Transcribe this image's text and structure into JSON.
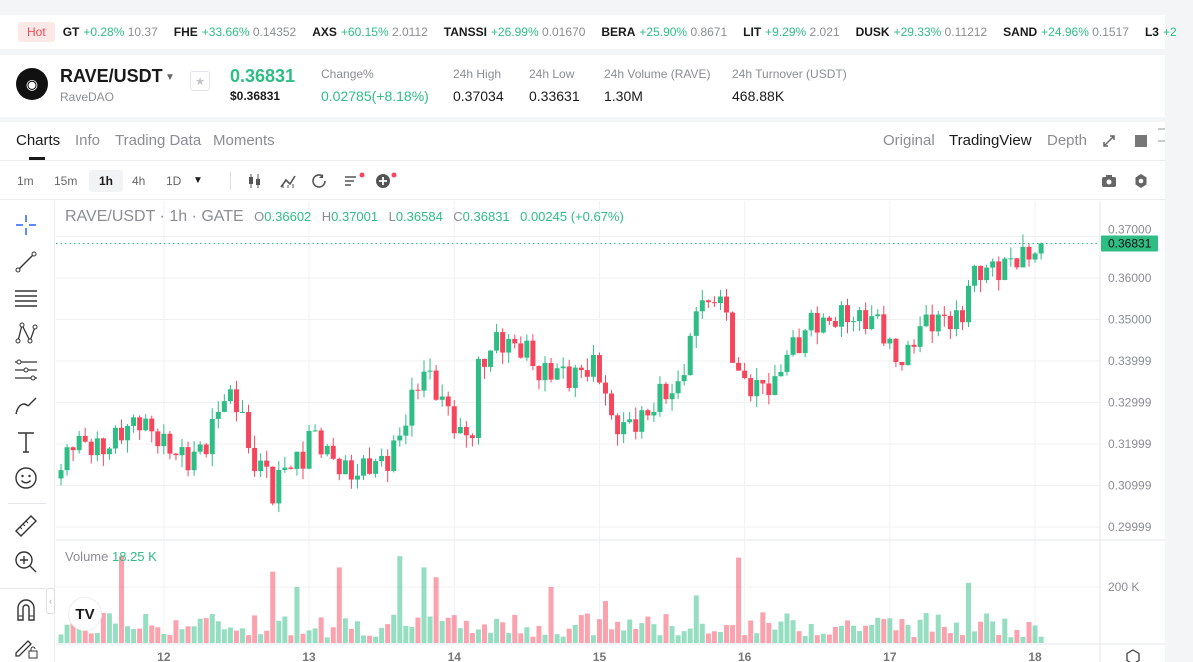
{
  "ticker": {
    "hot_label": "Hot",
    "items": [
      {
        "symbol": "GT",
        "change": "+0.28%",
        "price": "10.37"
      },
      {
        "symbol": "FHE",
        "change": "+33.66%",
        "price": "0.14352"
      },
      {
        "symbol": "AXS",
        "change": "+60.15%",
        "price": "2.0112"
      },
      {
        "symbol": "TANSSI",
        "change": "+26.99%",
        "price": "0.01670"
      },
      {
        "symbol": "BERA",
        "change": "+25.90%",
        "price": "0.8671"
      },
      {
        "symbol": "LIT",
        "change": "+9.29%",
        "price": "2.021"
      },
      {
        "symbol": "DUSK",
        "change": "+29.33%",
        "price": "0.11212"
      },
      {
        "symbol": "SAND",
        "change": "+24.96%",
        "price": "0.1517"
      },
      {
        "symbol": "L3",
        "change": "+2",
        "price": ""
      }
    ]
  },
  "header": {
    "pair": "RAVE/USDT",
    "name": "RaveDAO",
    "last_price": "0.36831",
    "last_price_usd": "$0.36831",
    "stats": [
      {
        "label": "Change%",
        "value": "0.02785(+8.18%)",
        "green": true
      },
      {
        "label": "24h High",
        "value": "0.37034"
      },
      {
        "label": "24h Low",
        "value": "0.33631"
      },
      {
        "label": "24h Volume (RAVE)",
        "value": "1.30M"
      },
      {
        "label": "24h Turnover (USDT)",
        "value": "468.88K"
      }
    ]
  },
  "tabs": [
    "Charts",
    "Info",
    "Trading Data",
    "Moments"
  ],
  "views": [
    "Original",
    "TradingView",
    "Depth"
  ],
  "intervals": [
    "1m",
    "15m",
    "1h",
    "4h",
    "1D"
  ],
  "legend": {
    "title": "RAVE/USDT · 1h · GATE",
    "o": "0.36602",
    "h": "0.37001",
    "l": "0.36584",
    "c": "0.36831",
    "chg": "0.00245 (+0.67%)"
  },
  "volume_legend": {
    "label": "Volume",
    "value": "18.25 K"
  },
  "colors": {
    "up": "#2ebd85",
    "down": "#f6465d",
    "accent": "#2962ff"
  },
  "chart_data": {
    "type": "candlestick",
    "title": "RAVE/USDT · 1h · GATE",
    "price_ticks": [
      "0.37000",
      "0.36000",
      "0.35000",
      "0.33999",
      "0.32999",
      "0.31999",
      "0.30999",
      "0.29999"
    ],
    "price_tick_values": [
      0.37,
      0.36,
      0.35,
      0.34,
      0.33,
      0.32,
      0.31,
      0.3
    ],
    "volume_ticks": [
      {
        "label": "200 K",
        "value": 200000
      }
    ],
    "x_ticks": [
      {
        "label": "12",
        "hour": 17
      },
      {
        "label": "13",
        "hour": 41
      },
      {
        "label": "14",
        "hour": 65
      },
      {
        "label": "15",
        "hour": 89
      },
      {
        "label": "16",
        "hour": 113
      },
      {
        "label": "17",
        "hour": 137
      },
      {
        "label": "18",
        "hour": 161
      }
    ],
    "last_price_label": "0.36831",
    "last_price": 0.36831,
    "close_path": [
      [
        0,
        0.3137
      ],
      [
        2,
        0.321
      ],
      [
        7,
        0.3185
      ],
      [
        10,
        0.323
      ],
      [
        13,
        0.3258
      ],
      [
        17,
        0.32
      ],
      [
        21,
        0.316
      ],
      [
        24,
        0.32
      ],
      [
        27,
        0.332
      ],
      [
        30,
        0.328
      ],
      [
        31,
        0.317
      ],
      [
        34,
        0.3137
      ],
      [
        35,
        0.308
      ],
      [
        37,
        0.315
      ],
      [
        40,
        0.316
      ],
      [
        41,
        0.323
      ],
      [
        43,
        0.32
      ],
      [
        45,
        0.316
      ],
      [
        48,
        0.3125
      ],
      [
        51,
        0.315
      ],
      [
        54,
        0.316
      ],
      [
        56,
        0.322
      ],
      [
        58,
        0.3306
      ],
      [
        60,
        0.338
      ],
      [
        62,
        0.333
      ],
      [
        64,
        0.328
      ],
      [
        66,
        0.322
      ],
      [
        68,
        0.323
      ],
      [
        69,
        0.338
      ],
      [
        72,
        0.345
      ],
      [
        74,
        0.344
      ],
      [
        77,
        0.3426
      ],
      [
        79,
        0.3366
      ],
      [
        82,
        0.338
      ],
      [
        84,
        0.336
      ],
      [
        88,
        0.339
      ],
      [
        90,
        0.333
      ],
      [
        91,
        0.3246
      ],
      [
        94,
        0.3246
      ],
      [
        97,
        0.327
      ],
      [
        99,
        0.332
      ],
      [
        102,
        0.333
      ],
      [
        104,
        0.345
      ],
      [
        106,
        0.357
      ],
      [
        107,
        0.352
      ],
      [
        109,
        0.357
      ],
      [
        111,
        0.3414
      ],
      [
        113,
        0.334
      ],
      [
        116,
        0.334
      ],
      [
        118,
        0.334
      ],
      [
        120,
        0.3426
      ],
      [
        122,
        0.344
      ],
      [
        124,
        0.35
      ],
      [
        126,
        0.3487
      ],
      [
        129,
        0.351
      ],
      [
        132,
        0.35
      ],
      [
        135,
        0.35
      ],
      [
        138,
        0.34
      ],
      [
        140,
        0.3414
      ],
      [
        142,
        0.3487
      ],
      [
        145,
        0.35
      ],
      [
        149,
        0.35
      ],
      [
        150,
        0.3595
      ],
      [
        153,
        0.3624
      ],
      [
        155,
        0.362
      ],
      [
        157,
        0.3643
      ],
      [
        160,
        0.3655
      ],
      [
        162,
        0.36831
      ]
    ],
    "volume_spikes": [
      [
        10,
        310000
      ],
      [
        56,
        310000
      ],
      [
        60,
        270000
      ],
      [
        62,
        235000
      ],
      [
        46,
        270000
      ],
      [
        35,
        255000
      ],
      [
        112,
        305000
      ],
      [
        150,
        215000
      ],
      [
        105,
        170000
      ],
      [
        81,
        200000
      ],
      [
        39,
        200000
      ],
      [
        90,
        150000
      ]
    ],
    "candle_count": 163
  }
}
